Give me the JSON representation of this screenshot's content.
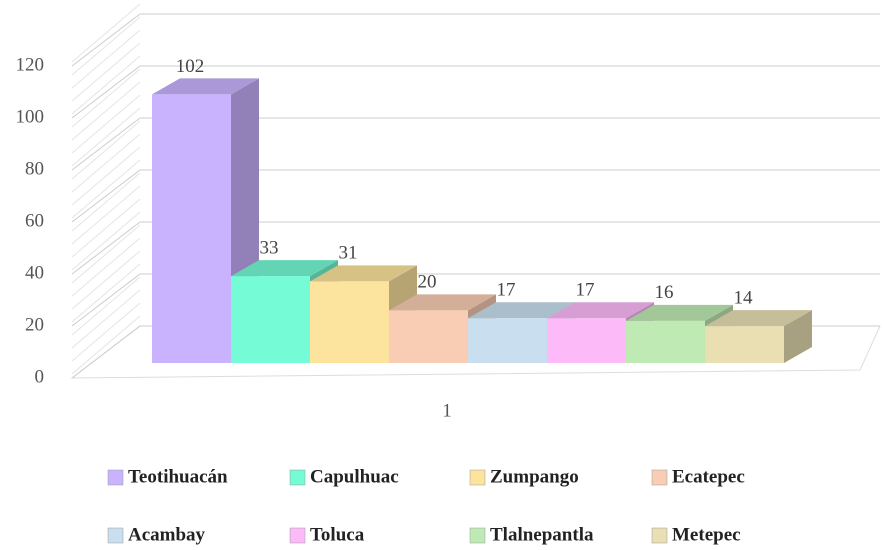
{
  "chart_data": {
    "type": "bar",
    "categories": [
      "1"
    ],
    "series": [
      {
        "name": "Teotihuacán",
        "color": "#c9b3ff",
        "values": [
          102
        ]
      },
      {
        "name": "Capulhuac",
        "color": "#75fbd5",
        "values": [
          33
        ]
      },
      {
        "name": "Zumpango",
        "color": "#fde49e",
        "values": [
          31
        ]
      },
      {
        "name": "Ecatepec",
        "color": "#f8cdb4",
        "values": [
          20
        ]
      },
      {
        "name": "Acambay",
        "color": "#c9dff0",
        "values": [
          17
        ]
      },
      {
        "name": "Toluca",
        "color": "#fcbaf8",
        "values": [
          17
        ]
      },
      {
        "name": "Tlalnepantla",
        "color": "#bfeab4",
        "values": [
          16
        ]
      },
      {
        "name": "Metepec",
        "color": "#e9dfb3",
        "values": [
          14
        ]
      }
    ],
    "ylim": [
      0,
      120
    ],
    "yticks": [
      0,
      20,
      40,
      60,
      80,
      100,
      120
    ],
    "grid": true,
    "legend": "bottom"
  }
}
